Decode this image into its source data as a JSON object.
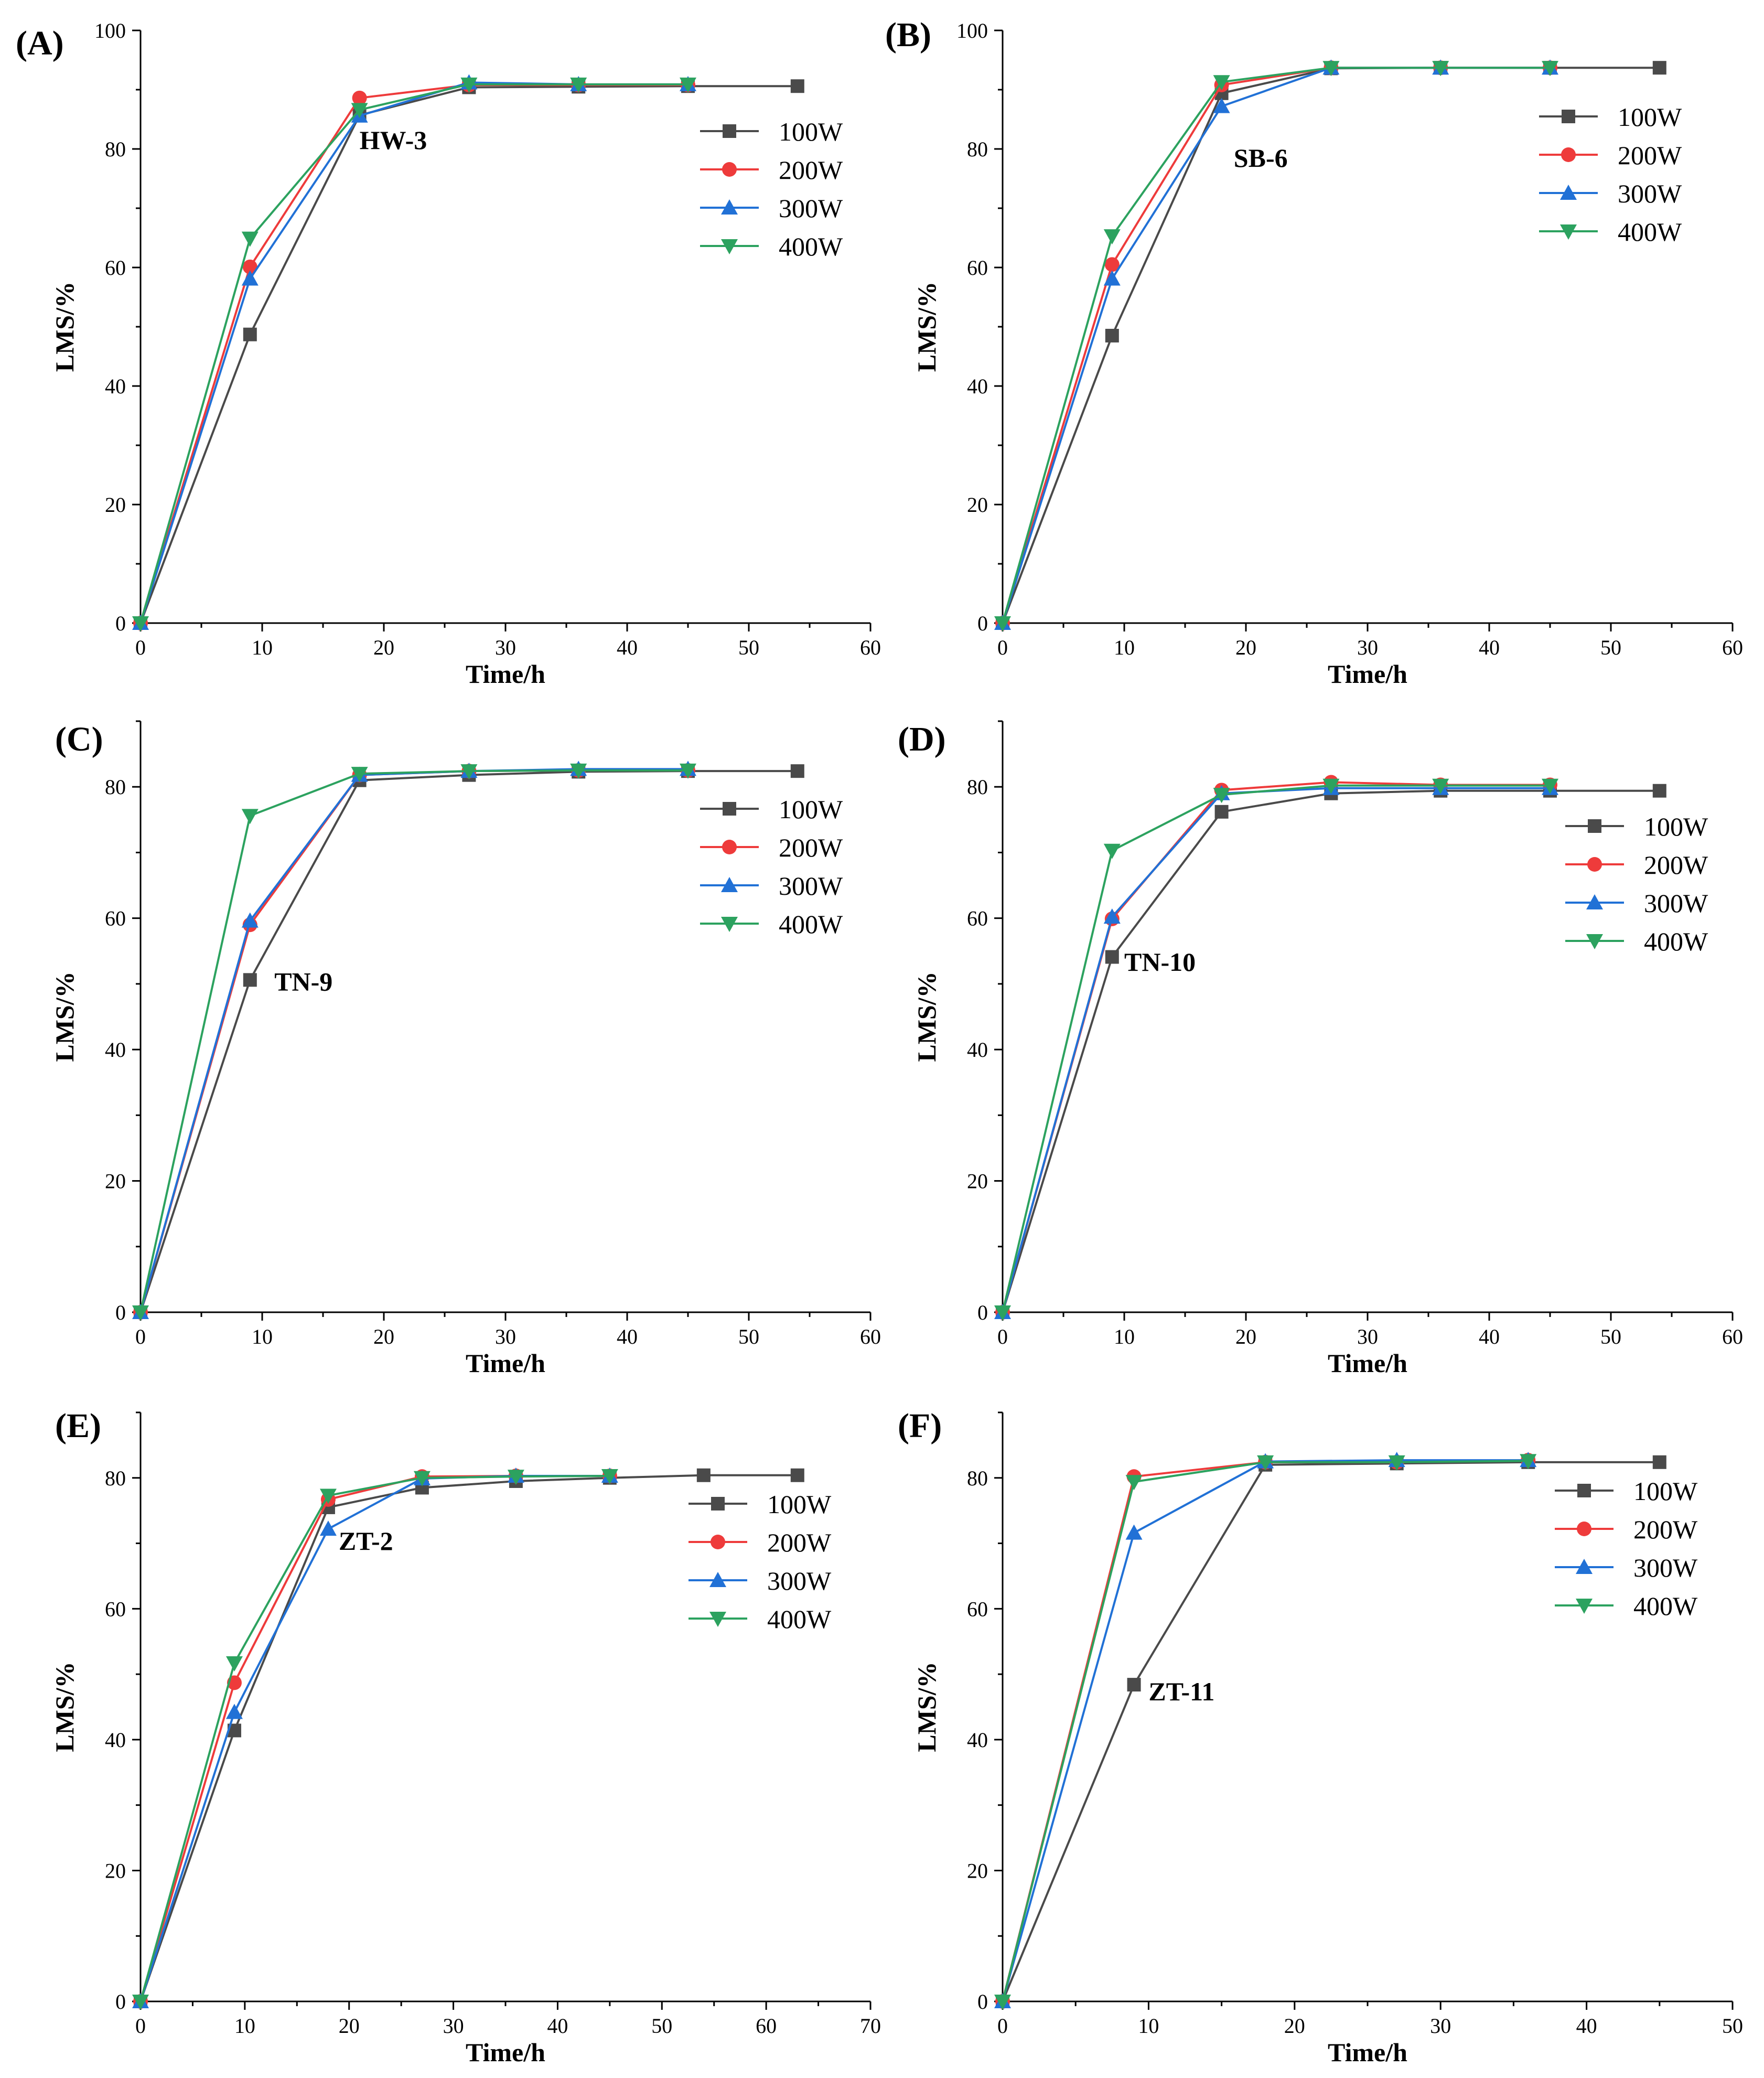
{
  "figure": {
    "colors": {
      "100W": "#4a4a4a",
      "200W": "#ee3b3b",
      "300W": "#2171d6",
      "400W": "#2ca25f"
    }
  },
  "chart_data": [
    {
      "type": "line",
      "panel": "(A)",
      "sample": "HW-3",
      "xlabel": "Time/h",
      "ylabel": "LMS/%",
      "xlim": [
        0,
        60
      ],
      "ylim": [
        0,
        100
      ],
      "xticks": [
        0,
        10,
        20,
        30,
        40,
        50,
        60
      ],
      "yticks": [
        0,
        20,
        40,
        60,
        80,
        100
      ],
      "legend_position": "right",
      "series": [
        {
          "name": "100W",
          "marker": "square",
          "x": [
            0,
            9,
            18,
            27,
            36,
            45,
            54
          ],
          "y": [
            0,
            48.7,
            85.7,
            90.4,
            90.5,
            90.6,
            90.6
          ]
        },
        {
          "name": "200W",
          "marker": "circle",
          "x": [
            0,
            9,
            18,
            27,
            36,
            45
          ],
          "y": [
            0,
            60.1,
            88.6,
            90.8,
            90.8,
            90.8
          ]
        },
        {
          "name": "300W",
          "marker": "triangle-up",
          "x": [
            0,
            9,
            18,
            27,
            36,
            45
          ],
          "y": [
            0,
            58.1,
            85.6,
            91.2,
            90.9,
            90.9
          ]
        },
        {
          "name": "400W",
          "marker": "triangle-down",
          "x": [
            0,
            9,
            18,
            27,
            36,
            45
          ],
          "y": [
            0,
            64.9,
            86.6,
            90.9,
            90.9,
            90.9
          ]
        }
      ]
    },
    {
      "type": "line",
      "panel": "(B)",
      "sample": "SB-6",
      "xlabel": "Time/h",
      "ylabel": "LMS/%",
      "xlim": [
        0,
        60
      ],
      "ylim": [
        0,
        100
      ],
      "xticks": [
        0,
        10,
        20,
        30,
        40,
        50,
        60
      ],
      "yticks": [
        0,
        20,
        40,
        60,
        80,
        100
      ],
      "legend_position": "right",
      "series": [
        {
          "name": "100W",
          "marker": "square",
          "x": [
            0,
            9,
            18,
            27,
            36,
            45,
            54
          ],
          "y": [
            0,
            48.5,
            89.4,
            93.6,
            93.7,
            93.7,
            93.7
          ]
        },
        {
          "name": "200W",
          "marker": "circle",
          "x": [
            0,
            9,
            18,
            27,
            36,
            45
          ],
          "y": [
            0,
            60.5,
            90.8,
            93.7,
            93.7,
            93.7
          ]
        },
        {
          "name": "300W",
          "marker": "triangle-up",
          "x": [
            0,
            9,
            18,
            27,
            36,
            45
          ],
          "y": [
            0,
            58.1,
            87.2,
            93.7,
            93.7,
            93.7
          ]
        },
        {
          "name": "400W",
          "marker": "triangle-down",
          "x": [
            0,
            9,
            18,
            27,
            36,
            45
          ],
          "y": [
            0,
            65.3,
            91.3,
            93.7,
            93.7,
            93.7
          ]
        }
      ]
    },
    {
      "type": "line",
      "panel": "(C)",
      "sample": "TN-9",
      "xlabel": "Time/h",
      "ylabel": "LMS/%",
      "xlim": [
        0,
        60
      ],
      "ylim": [
        0,
        90
      ],
      "xticks": [
        0,
        10,
        20,
        30,
        40,
        50,
        60
      ],
      "yticks": [
        0,
        20,
        40,
        60,
        80
      ],
      "legend_position": "right",
      "series": [
        {
          "name": "100W",
          "marker": "square",
          "x": [
            0,
            9,
            18,
            27,
            36,
            45,
            54
          ],
          "y": [
            0,
            50.6,
            81.0,
            81.8,
            82.3,
            82.4,
            82.4
          ]
        },
        {
          "name": "200W",
          "marker": "circle",
          "x": [
            0,
            9,
            18,
            27,
            36,
            45
          ],
          "y": [
            0,
            59.0,
            81.8,
            82.4,
            82.5,
            82.5
          ]
        },
        {
          "name": "300W",
          "marker": "triangle-up",
          "x": [
            0,
            9,
            18,
            27,
            36,
            45
          ],
          "y": [
            0,
            59.6,
            81.8,
            82.4,
            82.7,
            82.7
          ]
        },
        {
          "name": "400W",
          "marker": "triangle-down",
          "x": [
            0,
            9,
            18,
            27,
            36,
            45
          ],
          "y": [
            0,
            75.6,
            82.0,
            82.4,
            82.5,
            82.5
          ]
        }
      ]
    },
    {
      "type": "line",
      "panel": "(D)",
      "sample": "TN-10",
      "xlabel": "Time/h",
      "ylabel": "LMS/%",
      "xlim": [
        0,
        60
      ],
      "ylim": [
        0,
        90
      ],
      "xticks": [
        0,
        10,
        20,
        30,
        40,
        50,
        60
      ],
      "yticks": [
        0,
        20,
        40,
        60,
        80
      ],
      "legend_position": "right",
      "series": [
        {
          "name": "100W",
          "marker": "square",
          "x": [
            0,
            9,
            18,
            27,
            36,
            45,
            54
          ],
          "y": [
            0,
            54.1,
            76.2,
            79.0,
            79.4,
            79.4,
            79.4
          ]
        },
        {
          "name": "200W",
          "marker": "circle",
          "x": [
            0,
            9,
            18,
            27,
            36,
            45
          ],
          "y": [
            0,
            59.9,
            79.5,
            80.7,
            80.3,
            80.3
          ]
        },
        {
          "name": "300W",
          "marker": "triangle-up",
          "x": [
            0,
            9,
            18,
            27,
            36,
            45
          ],
          "y": [
            0,
            60.2,
            79.0,
            79.8,
            79.8,
            79.8
          ]
        },
        {
          "name": "400W",
          "marker": "triangle-down",
          "x": [
            0,
            9,
            18,
            27,
            36,
            45
          ],
          "y": [
            0,
            70.3,
            78.8,
            80.2,
            80.2,
            80.2
          ]
        }
      ]
    },
    {
      "type": "line",
      "panel": "(E)",
      "sample": "ZT-2",
      "xlabel": "Time/h",
      "ylabel": "LMS/%",
      "xlim": [
        0,
        70
      ],
      "ylim": [
        0,
        90
      ],
      "xticks": [
        0,
        10,
        20,
        30,
        40,
        50,
        60,
        70
      ],
      "yticks": [
        0,
        20,
        40,
        60,
        80
      ],
      "legend_position": "right",
      "series": [
        {
          "name": "100W",
          "marker": "square",
          "x": [
            0,
            9,
            18,
            27,
            36,
            45,
            54,
            63
          ],
          "y": [
            0,
            41.4,
            75.5,
            78.5,
            79.5,
            80.0,
            80.4,
            80.4
          ]
        },
        {
          "name": "200W",
          "marker": "circle",
          "x": [
            0,
            9,
            18,
            27,
            36,
            45
          ],
          "y": [
            0,
            48.7,
            76.7,
            80.2,
            80.3,
            80.3
          ]
        },
        {
          "name": "300W",
          "marker": "triangle-up",
          "x": [
            0,
            9,
            18,
            27,
            36,
            45
          ],
          "y": [
            0,
            44.2,
            72.2,
            79.9,
            80.3,
            80.3
          ]
        },
        {
          "name": "400W",
          "marker": "triangle-down",
          "x": [
            0,
            9,
            18,
            27,
            36,
            45
          ],
          "y": [
            0,
            51.7,
            77.3,
            80.0,
            80.2,
            80.3
          ]
        }
      ]
    },
    {
      "type": "line",
      "panel": "(F)",
      "sample": "ZT-11",
      "xlabel": "Time/h",
      "ylabel": "LMS/%",
      "xlim": [
        0,
        50
      ],
      "ylim": [
        0,
        90
      ],
      "xticks": [
        0,
        10,
        20,
        30,
        40,
        50
      ],
      "yticks": [
        0,
        20,
        40,
        60,
        80
      ],
      "legend_position": "right",
      "series": [
        {
          "name": "100W",
          "marker": "square",
          "x": [
            0,
            9,
            18,
            27,
            36,
            45
          ],
          "y": [
            0,
            48.4,
            82.0,
            82.2,
            82.4,
            82.4
          ]
        },
        {
          "name": "200W",
          "marker": "circle",
          "x": [
            0,
            9,
            18,
            27,
            36
          ],
          "y": [
            0,
            80.2,
            82.4,
            82.4,
            82.7
          ]
        },
        {
          "name": "300W",
          "marker": "triangle-up",
          "x": [
            0,
            9,
            18,
            27,
            36
          ],
          "y": [
            0,
            71.6,
            82.5,
            82.7,
            82.7
          ]
        },
        {
          "name": "400W",
          "marker": "triangle-down",
          "x": [
            0,
            9,
            18,
            27,
            36
          ],
          "y": [
            0,
            79.4,
            82.4,
            82.4,
            82.6
          ]
        }
      ]
    }
  ]
}
